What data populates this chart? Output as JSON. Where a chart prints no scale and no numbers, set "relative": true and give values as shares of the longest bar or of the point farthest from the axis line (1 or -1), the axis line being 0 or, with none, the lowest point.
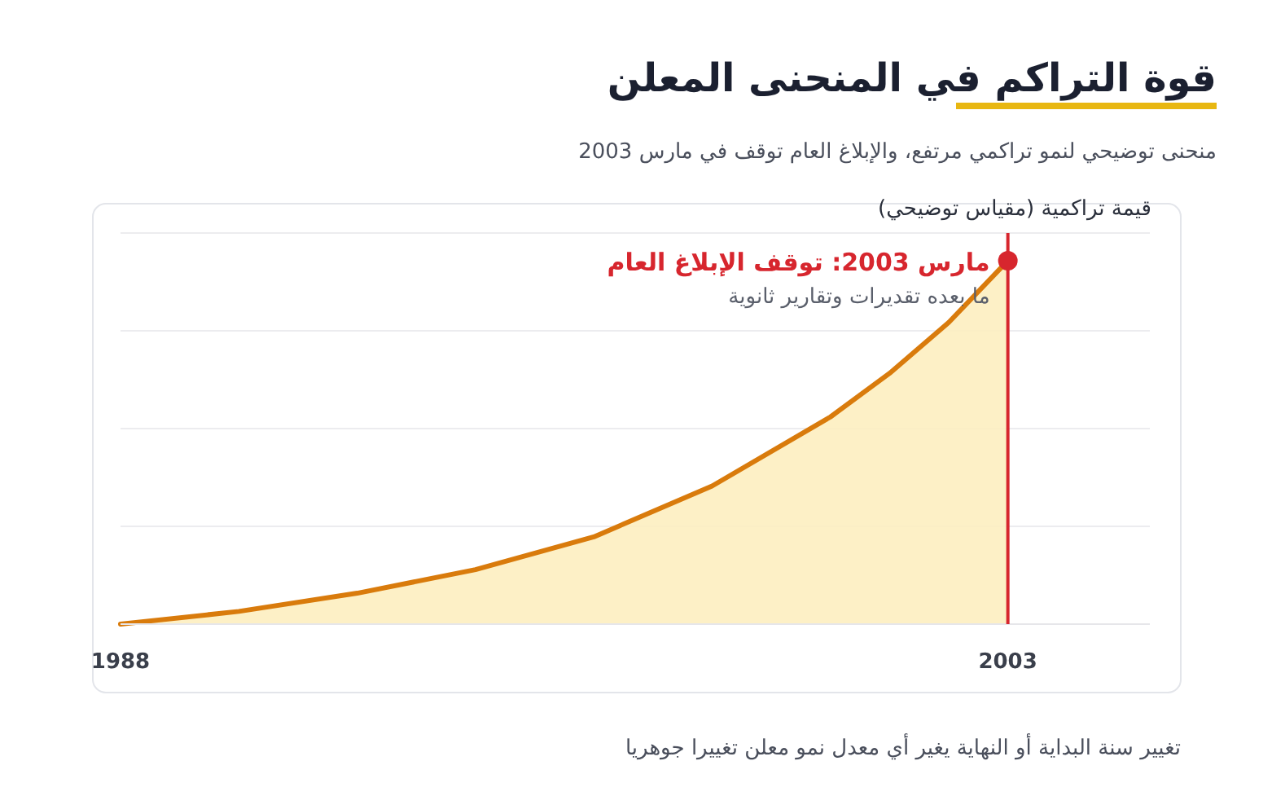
{
  "chart_data": {
    "type": "area",
    "title": "قوة التراكم في المنحنى المعلن",
    "subtitle": "منحنى توضيحي لنمو تراكمي مرتفع، والإبلاغ العام توقف في مارس 2003",
    "ylabel": "قيمة تراكمية (مقياس توضيحي)",
    "relative": true,
    "x": [
      1988,
      1990,
      1992,
      1994,
      1996,
      1998,
      2000,
      2001,
      2002,
      2003
    ],
    "series": [
      {
        "color": "#d97b0c",
        "values": [
          0,
          0.035,
          0.085,
          0.15,
          0.24,
          0.38,
          0.57,
          0.69,
          0.83,
          1
        ]
      }
    ],
    "xlim": [
      1988,
      2005.4
    ],
    "xticks": [
      1988,
      2003
    ],
    "grid": "y",
    "ref_lines": [
      {
        "axis": "x",
        "value": 2003,
        "label": "مارس 2003: توقف الإبلاغ العام",
        "color": "#d7262e"
      }
    ],
    "annotations": [
      {
        "text": "ما بعده تقديرات وتقارير ثانوية",
        "x": 2003,
        "y": 1
      },
      "تغيير سنة البداية أو النهاية يغير أي معدل نمو معلن تغييرا جوهريا"
    ]
  }
}
